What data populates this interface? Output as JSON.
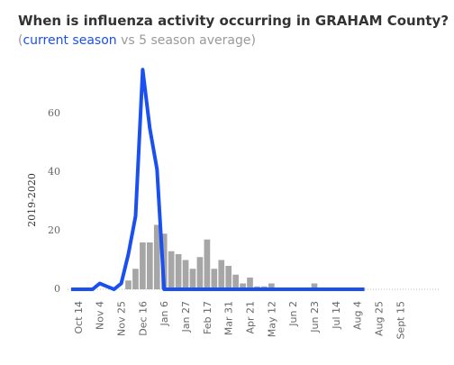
{
  "chart_data": {
    "type": "bar+line",
    "title": "When is influenza activity occurring in GRAHAM County?",
    "legend_text": {
      "open": "(",
      "sep": "vs",
      "close": ")"
    },
    "y_label": "2019-2020",
    "categories": [
      null,
      "Oct 14",
      null,
      null,
      "Nov 4",
      null,
      null,
      "Nov 25",
      null,
      null,
      "Dec 16",
      null,
      null,
      "Jan 6",
      null,
      null,
      "Jan 27",
      null,
      null,
      "Feb 17",
      null,
      null,
      "Mar 31",
      null,
      null,
      "Apr 21",
      null,
      null,
      "May 12",
      null,
      null,
      "Jun 2",
      null,
      null,
      "Jun 23",
      null,
      null,
      "Jul 14",
      null,
      null,
      "Aug 4",
      null,
      null,
      "Aug 25",
      null,
      null,
      "Sept 15",
      null,
      null,
      null,
      null,
      null
    ],
    "series": [
      {
        "name": "current season",
        "color": "#1a4ff0",
        "kind": "line",
        "values": [
          0,
          0,
          0,
          0,
          2,
          1,
          0,
          2,
          12,
          25,
          75,
          55,
          41,
          0,
          0,
          0,
          0,
          0,
          0,
          0,
          0,
          0,
          0,
          0,
          0,
          0,
          0,
          0,
          0,
          0,
          0,
          0,
          0,
          0,
          0,
          0,
          0,
          0,
          0,
          0,
          0,
          0,
          null,
          null,
          null,
          null,
          null,
          null,
          null,
          null,
          null,
          null
        ]
      },
      {
        "name": "5 season average",
        "color": "#a6a6a6",
        "kind": "bar",
        "values": [
          0,
          0,
          0,
          0,
          0,
          0,
          0,
          0,
          3,
          7,
          16,
          16,
          22,
          19,
          13,
          12,
          10,
          7,
          11,
          17,
          7,
          10,
          8,
          5,
          2,
          4,
          1,
          1,
          2,
          0.5,
          0.5,
          0.5,
          0.5,
          0.5,
          2,
          0.5,
          0.5,
          0.5,
          0.5,
          0.5,
          0.5,
          0,
          0,
          0,
          0,
          0,
          0,
          0,
          0,
          0,
          0,
          0
        ]
      }
    ],
    "ylim": [
      0,
      76
    ],
    "yticks": [
      0,
      20,
      40,
      60
    ]
  }
}
